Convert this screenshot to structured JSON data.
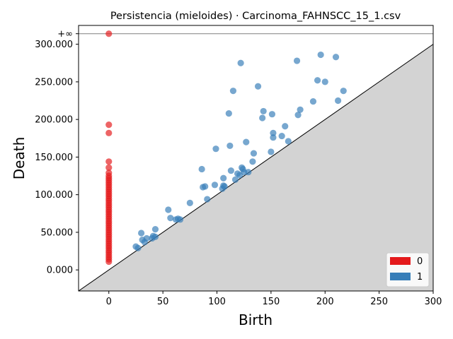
{
  "chart_data": {
    "type": "scatter",
    "title": "Persistencia (mieloides) · Carcinoma_FAHNSCC_15_1.csv",
    "xlabel": "Birth",
    "ylabel": "Death",
    "xlim": [
      -28,
      300
    ],
    "ylim": [
      -28000,
      325000
    ],
    "infinity_label": "+∞",
    "infinity_level": 314000,
    "x_ticks": [
      0,
      50,
      100,
      150,
      200,
      250,
      300
    ],
    "x_tick_labels": [
      "0",
      "50",
      "100",
      "150",
      "200",
      "250",
      "300"
    ],
    "y_ticks": [
      0,
      50000,
      100000,
      150000,
      200000,
      250000,
      300000
    ],
    "y_tick_labels": [
      "0.000",
      "50.000",
      "100.000",
      "150.000",
      "200.000",
      "250.000",
      "300.000"
    ],
    "diagonal": true,
    "legend_position": "bottom-right",
    "colors": {
      "h0": "#e41a1c",
      "h1": "#377eb8",
      "diagonal_fill": "#d3d3d3",
      "infinity_line": "#808080"
    },
    "series": [
      {
        "name": "0",
        "color": "#e41a1c",
        "points": [
          [
            0,
            314000
          ],
          [
            0,
            193000
          ],
          [
            0,
            182000
          ],
          [
            0,
            144000
          ],
          [
            0,
            136000
          ],
          [
            0,
            129000
          ],
          [
            0,
            125000
          ],
          [
            0,
            122000
          ],
          [
            0,
            119000
          ],
          [
            0,
            116000
          ],
          [
            0,
            113000
          ],
          [
            0,
            110000
          ],
          [
            0,
            107000
          ],
          [
            0,
            104000
          ],
          [
            0,
            101000
          ],
          [
            0,
            98000
          ],
          [
            0,
            95000
          ],
          [
            0,
            92000
          ],
          [
            0,
            89000
          ],
          [
            0,
            86000
          ],
          [
            0,
            83000
          ],
          [
            0,
            80000
          ],
          [
            0,
            77000
          ],
          [
            0,
            74000
          ],
          [
            0,
            71000
          ],
          [
            0,
            68000
          ],
          [
            0,
            65000
          ],
          [
            0,
            62000
          ],
          [
            0,
            59000
          ],
          [
            0,
            56000
          ],
          [
            0,
            53000
          ],
          [
            0,
            50000
          ],
          [
            0,
            47000
          ],
          [
            0,
            44000
          ],
          [
            0,
            41000
          ],
          [
            0,
            38000
          ],
          [
            0,
            35000
          ],
          [
            0,
            32000
          ],
          [
            0,
            29000
          ],
          [
            0,
            26000
          ],
          [
            0,
            23000
          ],
          [
            0,
            20000
          ],
          [
            0,
            17000
          ],
          [
            0,
            14000
          ],
          [
            0,
            11000
          ]
        ]
      },
      {
        "name": "1",
        "color": "#377eb8",
        "points": [
          [
            25,
            31000
          ],
          [
            27,
            29000
          ],
          [
            30,
            49000
          ],
          [
            31,
            40000
          ],
          [
            33,
            37000
          ],
          [
            35,
            42000
          ],
          [
            40,
            42000
          ],
          [
            41,
            45000
          ],
          [
            43,
            44000
          ],
          [
            43,
            54000
          ],
          [
            55,
            80000
          ],
          [
            57,
            69000
          ],
          [
            62,
            67000
          ],
          [
            64,
            68000
          ],
          [
            66,
            67000
          ],
          [
            75,
            89000
          ],
          [
            86,
            134000
          ],
          [
            87,
            110000
          ],
          [
            89,
            111000
          ],
          [
            91,
            94000
          ],
          [
            98,
            113000
          ],
          [
            99,
            161000
          ],
          [
            105,
            108000
          ],
          [
            106,
            122000
          ],
          [
            106,
            112000
          ],
          [
            107,
            111000
          ],
          [
            111,
            208000
          ],
          [
            112,
            165000
          ],
          [
            113,
            132000
          ],
          [
            115,
            238000
          ],
          [
            117,
            120000
          ],
          [
            119,
            128000
          ],
          [
            121,
            126000
          ],
          [
            122,
            275000
          ],
          [
            123,
            136000
          ],
          [
            124,
            134000
          ],
          [
            125,
            130000
          ],
          [
            127,
            170000
          ],
          [
            129,
            130000
          ],
          [
            133,
            144000
          ],
          [
            134,
            155000
          ],
          [
            138,
            244000
          ],
          [
            142,
            202000
          ],
          [
            143,
            211000
          ],
          [
            150,
            157000
          ],
          [
            151,
            207000
          ],
          [
            152,
            182000
          ],
          [
            152,
            176000
          ],
          [
            160,
            178000
          ],
          [
            163,
            191000
          ],
          [
            166,
            171000
          ],
          [
            174,
            278000
          ],
          [
            175,
            206000
          ],
          [
            177,
            213000
          ],
          [
            189,
            224000
          ],
          [
            193,
            252000
          ],
          [
            196,
            286000
          ],
          [
            200,
            250000
          ],
          [
            210,
            283000
          ],
          [
            212,
            225000
          ],
          [
            217,
            238000
          ]
        ]
      }
    ]
  }
}
